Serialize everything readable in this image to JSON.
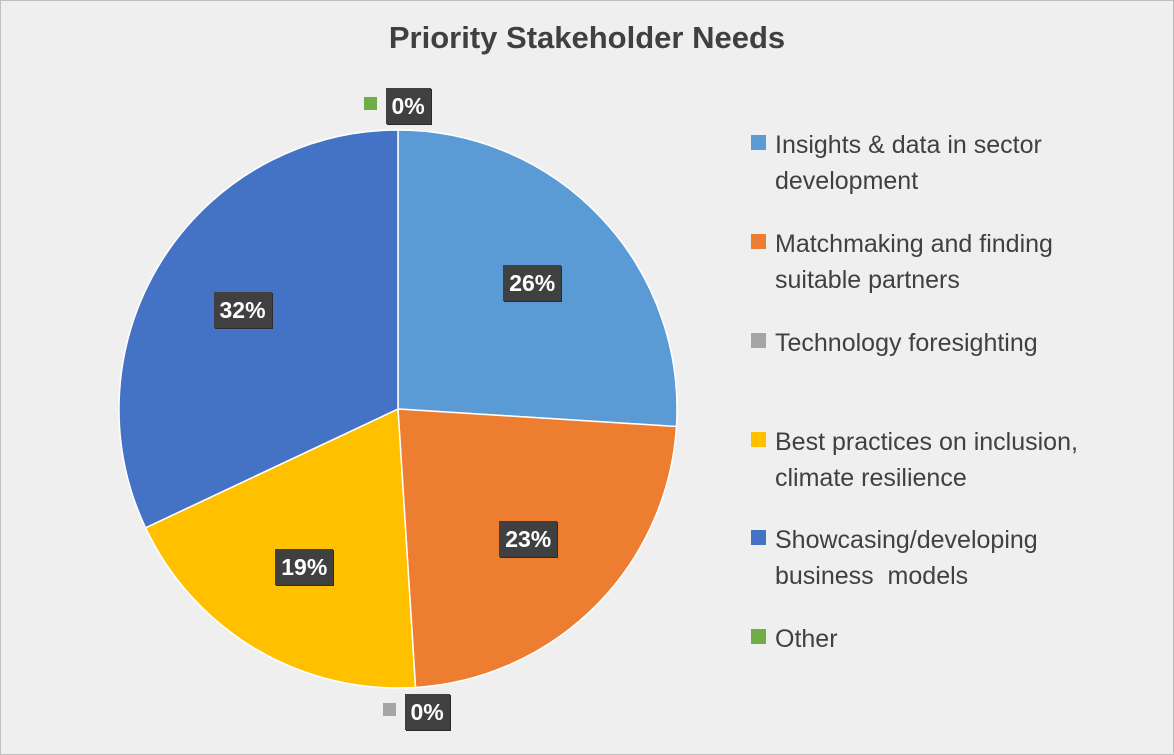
{
  "chart_data": {
    "type": "pie",
    "title": "Priority Stakeholder Needs",
    "slices": [
      {
        "name": "Insights & data in sector development",
        "legend_line1": "Insights & data in sector",
        "legend_line2": "development",
        "value": 26,
        "label": "26%",
        "color": "#5b9bd5"
      },
      {
        "name": "Matchmaking and finding suitable partners",
        "legend_line1": "Matchmaking and finding",
        "legend_line2": "suitable partners",
        "value": 23,
        "label": "23%",
        "color": "#ed7d31"
      },
      {
        "name": "Technology foresighting",
        "legend_line1": "Technology foresighting",
        "legend_line2": "",
        "value": 0,
        "label": "0%",
        "color": "#a5a5a5"
      },
      {
        "name": "Best practices on inclusion, climate resilience",
        "legend_line1": "Best practices on inclusion,",
        "legend_line2": "climate resilience",
        "value": 19,
        "label": "19%",
        "color": "#ffc000"
      },
      {
        "name": "Showcasing/developing business  models",
        "legend_line1": "Showcasing/developing",
        "legend_line2": "business  models",
        "value": 32,
        "label": "32%",
        "color": "#4472c4"
      },
      {
        "name": "Other",
        "legend_line1": "Other",
        "legend_line2": "",
        "value": 0,
        "label": "0%",
        "color": "#70ad47"
      }
    ],
    "legend_position": "right"
  }
}
